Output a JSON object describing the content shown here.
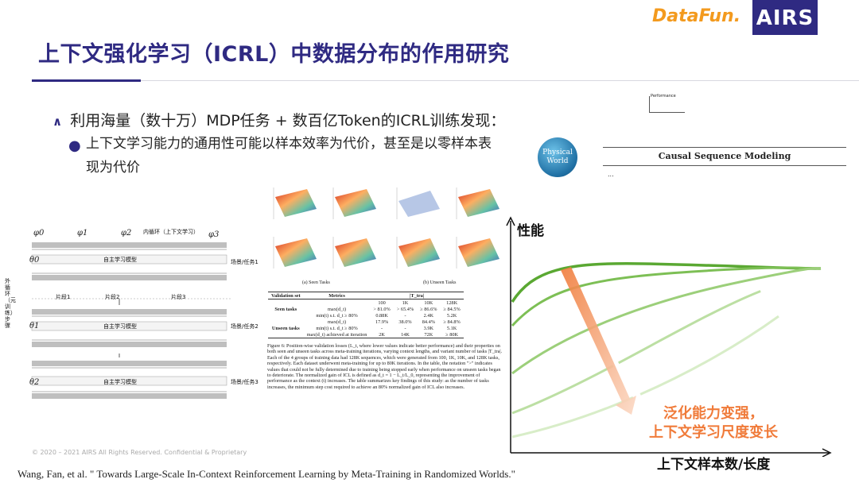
{
  "header": {
    "title": "上下文强化学习（ICRL）中数据分布的作用研究",
    "logo_datafun": "DataFun.",
    "logo_airs": "AIRS"
  },
  "bullets": {
    "level1": "利用海量（数十万）MDP任务 + 数百亿Token的ICRL训练发现：",
    "level2_line1": "上下文学习能力的通用性可能以样本效率为代价，甚至是以零样本表",
    "level2_line2": "现为代价"
  },
  "diagram_left": {
    "phi": [
      "φ0",
      "φ1",
      "φ2",
      "φ3"
    ],
    "inner_loop": "内循环（上下文学习）",
    "theta": [
      "θ0",
      "θ1",
      "θ2"
    ],
    "model": "自主学习模型",
    "scenes": [
      "场景/任务1",
      "场景/任务2",
      "场景/任务3"
    ],
    "segments": [
      "片段1",
      "片段2",
      "片段3"
    ],
    "outer_loop": "外循环（元训练）步骤"
  },
  "figure": {
    "subcap_a": "(a) Seen Tasks",
    "subcap_b": "(b) Unseen Tasks",
    "table": {
      "header": [
        "Validation set",
        "Metrics",
        "|T_tra|"
      ],
      "cols": [
        "100",
        "1K",
        "10K",
        "128K"
      ],
      "rows": [
        [
          "Seen tasks",
          "max(d_t)",
          "> 81.0%",
          "> 65.4%",
          "≥ 86.6%",
          "≥ 84.5%"
        ],
        [
          "",
          "min(t) s.t. d_t ≥ 80%",
          "0.88K",
          "-",
          "2.4K",
          "5.2K"
        ],
        [
          "",
          "max(d_t)",
          "17.9%",
          "38.0%",
          "84.4%",
          "≥ 84.8%"
        ],
        [
          "Unseen tasks",
          "min(t) s.t. d_t ≥ 80%",
          "-",
          "-",
          "3.9K",
          "5.1K"
        ],
        [
          "",
          "max(d_t) achieved at iteration",
          "2K",
          "14K",
          "72K",
          "≥ 80K"
        ]
      ]
    },
    "caption": "Figure 6: Position-wise validation losses (L_t, where lower values indicate better performance) and their properties on both seen and unseen tasks across meta-training iterations, varying context lengths, and variant number of tasks |T_tra|. Each of the 4 groups of training data had 128K sequences, which were generated from 100, 1K, 10K, and 128K tasks, respectively. Each dataset underwent meta-training for up to 80K iterations. In the table, the notation \">\" indicates values that could not be fully determined due to training being stopped early when performance on unseen tasks began to deteriorate. The normalized gain of ICL is defined as d_t = 1 − L_t/L_0, representing the improvement of performance as the context (t) increases. The table summarizes key findings of this study: as the number of tasks increases, the minimum step cost required to achieve an 80% normalized gain of ICL also increases."
  },
  "right_panel": {
    "world_label": "Physical World",
    "csm_label": "Causal Sequence Modeling",
    "dots": "...",
    "mini_perf": "Performance",
    "y_label": "性能",
    "x_label": "上下文样本数/长度",
    "note_line1": "泛化能力变强，",
    "note_line2": "上下文学习尺度变长"
  },
  "footer": {
    "copyright": "© 2020 – 2021 AIRS All Rights Reserved. Confidential & Proprietary",
    "citation": "Wang, Fan, et al. \" Towards Large-Scale In-Context Reinforcement Learning by Meta-Training in Randomized Worlds.\""
  },
  "colors": {
    "brand": "#2f2a82",
    "accent_orange": "#f07b3a",
    "curve_greens": [
      "#5aa832",
      "#7dbf55",
      "#9ccf7a",
      "#bcdfa3",
      "#d8edc8"
    ]
  }
}
